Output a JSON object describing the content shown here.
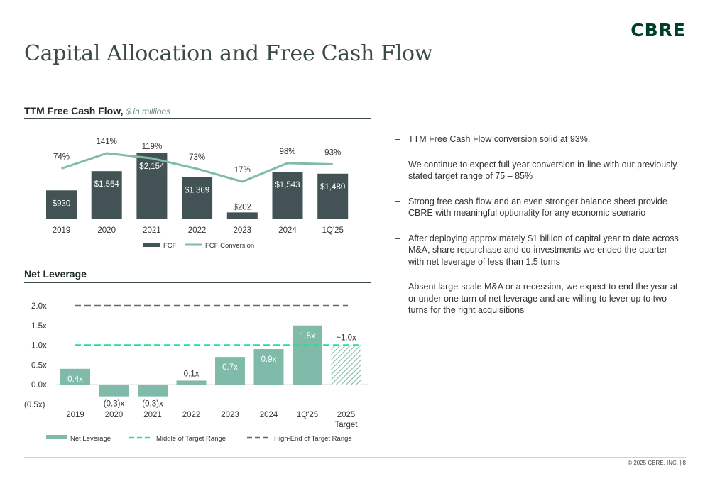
{
  "logo": "CBRE",
  "title": "Capital Allocation and Free Cash Flow",
  "fcf_section": {
    "title": "TTM Free Cash Flow,",
    "subtitle": "$ in millions"
  },
  "leverage_section": {
    "title": "Net Leverage"
  },
  "bullets": [
    "TTM Free Cash Flow conversion solid at 93%.",
    "We continue to expect full year conversion in-line with our previously stated target range of 75 – 85%",
    "Strong free cash flow and an even stronger balance sheet provide CBRE with meaningful optionality for any economic scenario",
    "After deploying approximately $1 billion of capital year to date across M&A, share repurchase and co-investments we ended the quarter with net leverage of less than 1.5 turns",
    "Absent large-scale M&A or a recession, we expect to end the year at or under one turn of net leverage and are willing to lever up to two turns for the right acquisitions"
  ],
  "footer": "© 2025 CBRE, INC. | 8",
  "colors": {
    "bar_dark": "#435254",
    "line_green": "#80bba9",
    "bar_light": "#80bba9",
    "target_green": "#17e88f",
    "gray_dash": "#666666"
  },
  "chart_data": [
    {
      "type": "bar",
      "categories": [
        "2019",
        "2020",
        "2021",
        "2022",
        "2023",
        "2024",
        "1Q'25"
      ],
      "series": [
        {
          "name": "FCF",
          "values": [
            930,
            1564,
            2154,
            1369,
            202,
            1543,
            1480
          ],
          "labels": [
            "$930",
            "$1,564",
            "$2,154",
            "$1,369",
            "$202",
            "$1,543",
            "$1,480"
          ]
        },
        {
          "name": "FCF Conversion",
          "type": "line",
          "values": [
            74,
            141,
            119,
            73,
            17,
            98,
            93
          ],
          "labels": [
            "74%",
            "141%",
            "119%",
            "73%",
            "17%",
            "98%",
            "93%"
          ]
        }
      ],
      "legend": [
        "FCF",
        "FCF Conversion"
      ]
    },
    {
      "type": "bar",
      "categories": [
        "2019",
        "2020",
        "2021",
        "2022",
        "2023",
        "2024",
        "1Q'25",
        "2025 Target"
      ],
      "values": [
        0.4,
        -0.3,
        -0.3,
        0.1,
        0.7,
        0.9,
        1.5,
        1.0
      ],
      "labels": [
        "0.4x",
        "(0.3)x",
        "(0.3)x",
        "0.1x",
        "0.7x",
        "0.9x",
        "1.5x",
        "~1.0x"
      ],
      "yticks": [
        "2.0x",
        "1.5x",
        "1.0x",
        "0.5x",
        "0.0x",
        "(0.5x)"
      ],
      "ylim": [
        -0.5,
        2.0
      ],
      "reference_lines": [
        {
          "name": "Middle of Target Range",
          "value": 1.0
        },
        {
          "name": "High-End of Target Range",
          "value": 2.0
        }
      ],
      "legend": [
        "Net Leverage",
        "Middle of Target Range",
        "High-End of Target Range"
      ]
    }
  ]
}
